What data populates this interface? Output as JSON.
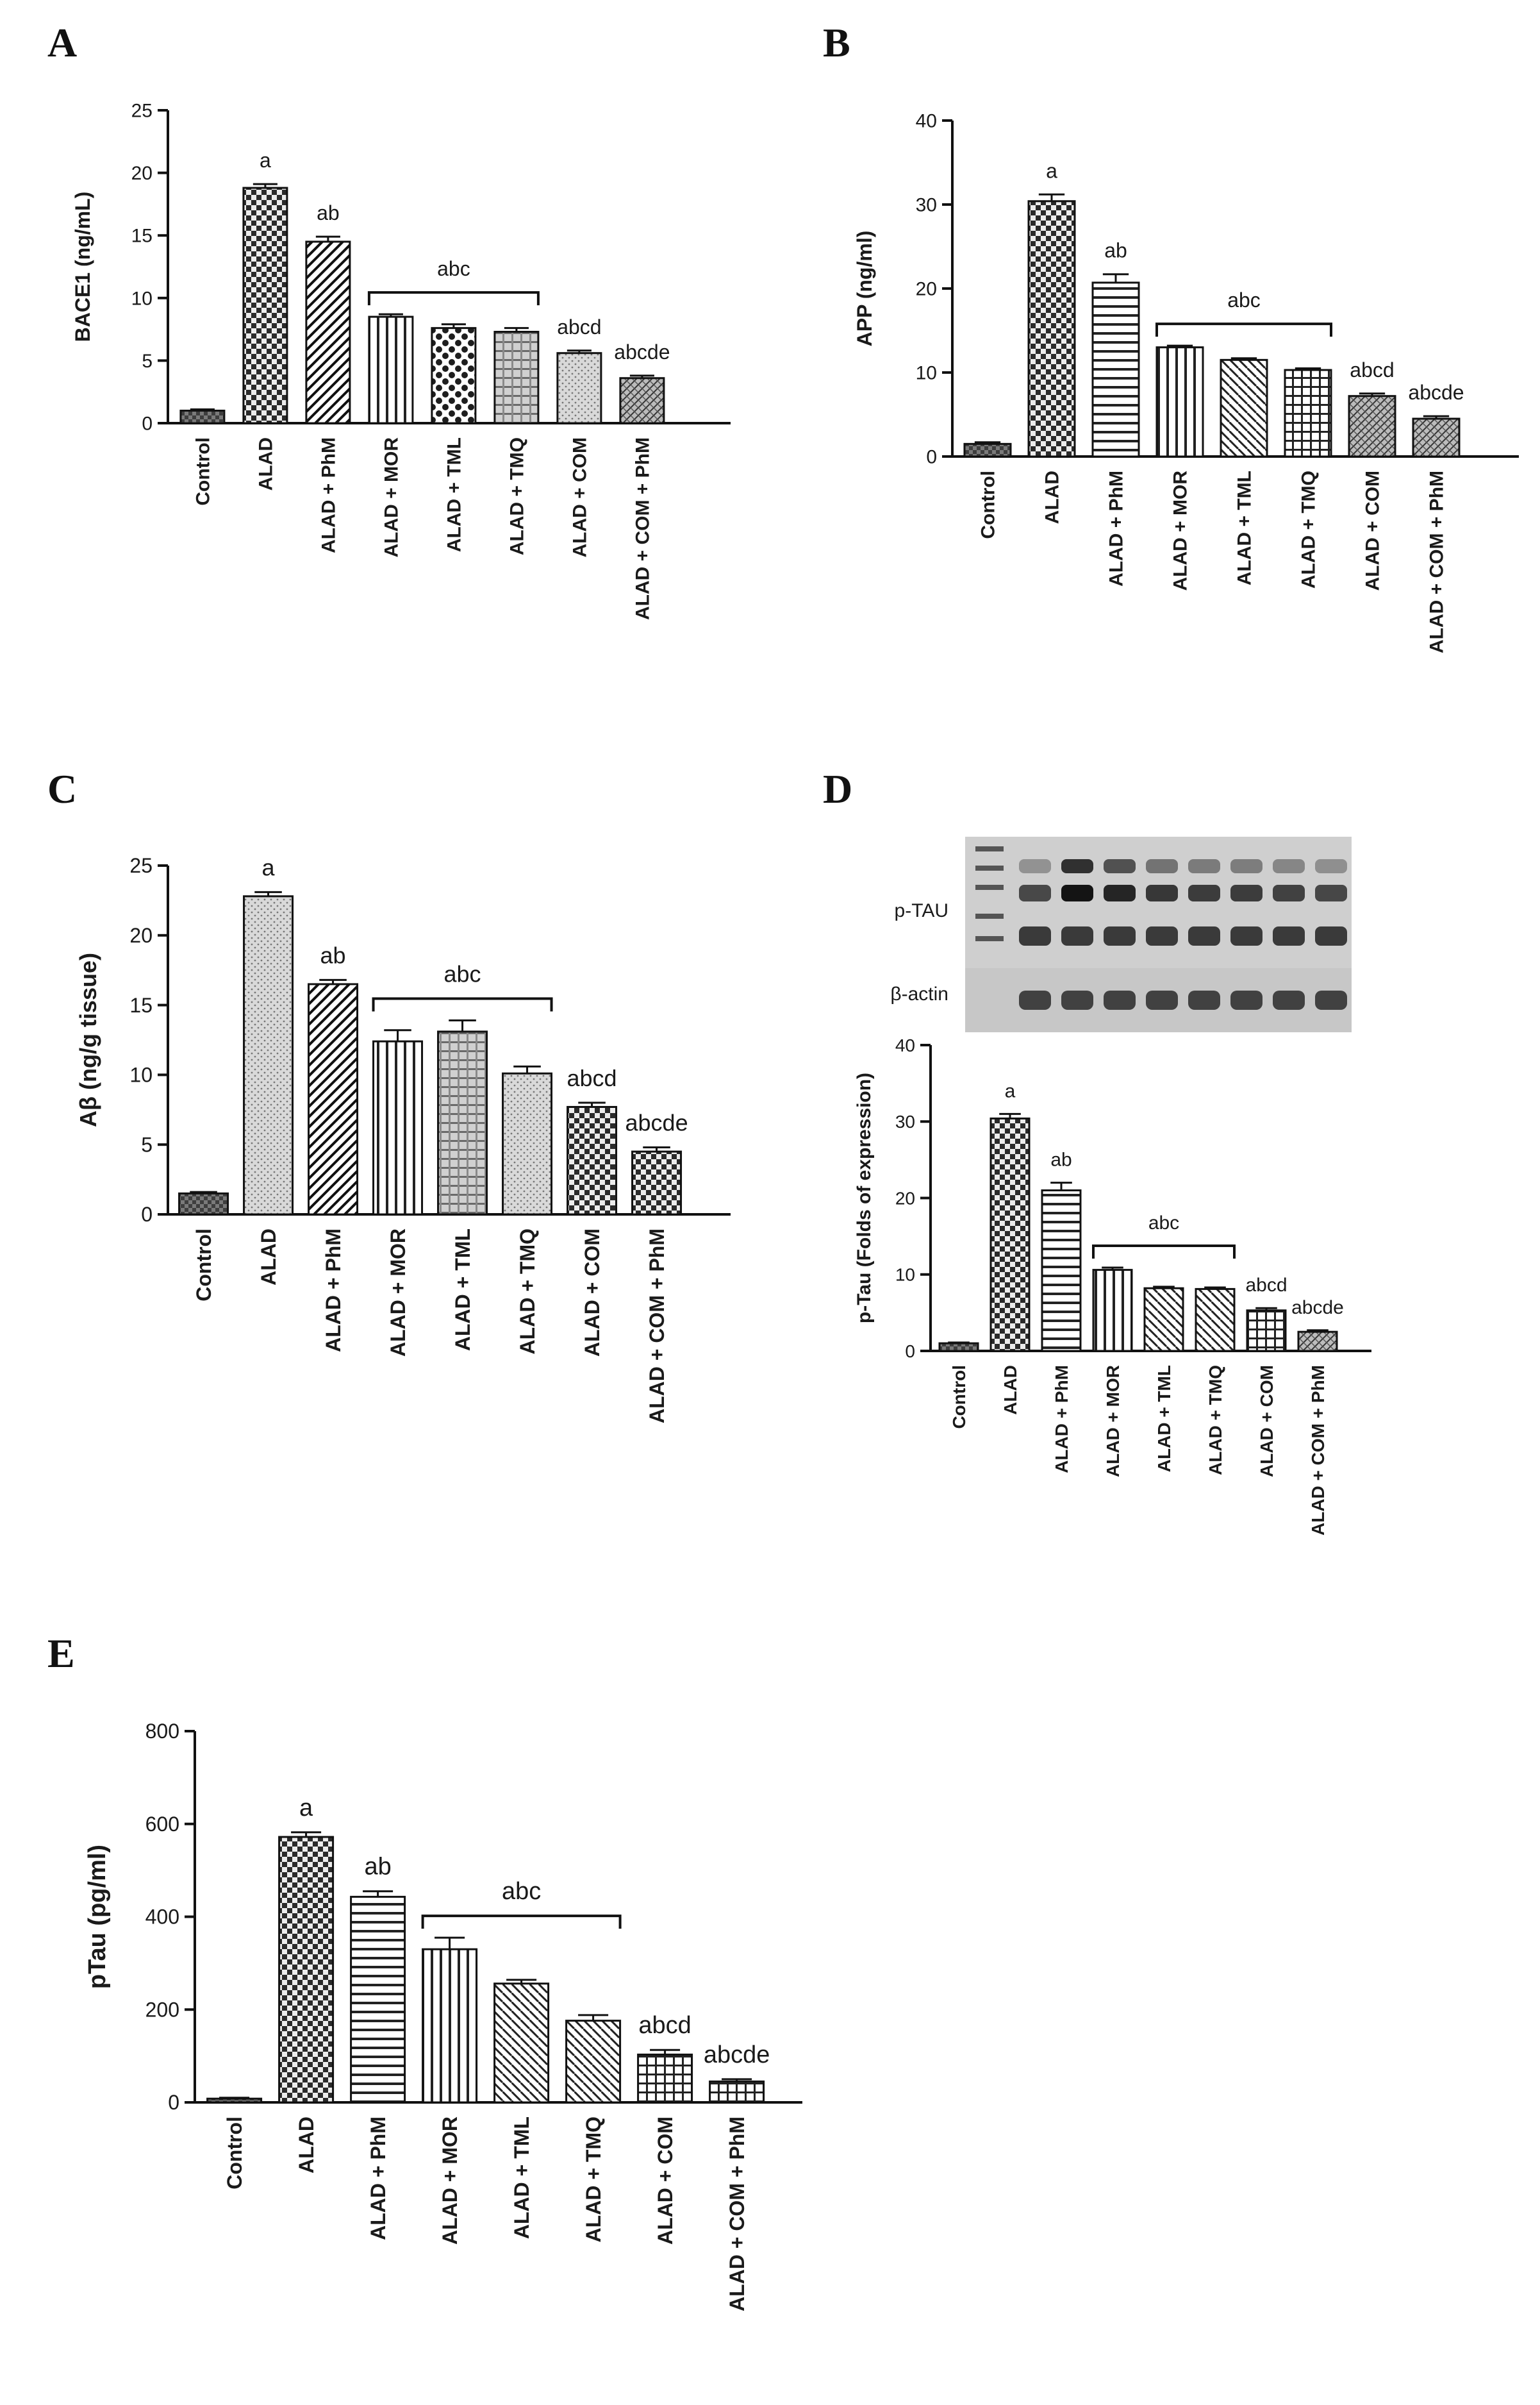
{
  "figure": {
    "panels": [
      "A",
      "B",
      "C",
      "D",
      "E"
    ],
    "western_blot": {
      "labels": [
        "p-TAU",
        "β-actin"
      ]
    }
  },
  "chart_data": [
    {
      "panel": "A",
      "type": "bar",
      "ylabel": "BACE1 (ng/mL)",
      "ylim": [
        0,
        25
      ],
      "yticks": [
        0,
        5,
        10,
        15,
        20,
        25
      ],
      "categories": [
        "Control",
        "ALAD",
        "ALAD + PhM",
        "ALAD + MOR",
        "ALAD + TML",
        "ALAD + TMQ",
        "ALAD + COM",
        "ALAD + COM + PhM"
      ],
      "values": [
        1.0,
        18.8,
        14.5,
        8.5,
        7.6,
        7.3,
        5.6,
        3.6
      ],
      "errors": [
        0.1,
        0.3,
        0.4,
        0.2,
        0.3,
        0.3,
        0.2,
        0.2
      ],
      "annotations": [
        {
          "label": "a",
          "bar": 1
        },
        {
          "label": "ab",
          "bar": 2
        },
        {
          "label": "abc",
          "bracket": [
            3,
            5
          ]
        },
        {
          "label": "abcd",
          "bar": 6
        },
        {
          "label": "abcde",
          "bar": 7
        }
      ]
    },
    {
      "panel": "B",
      "type": "bar",
      "ylabel": "APP (ng/ml)",
      "ylim": [
        0,
        40
      ],
      "yticks": [
        0,
        10,
        20,
        30,
        40
      ],
      "categories": [
        "Control",
        "ALAD",
        "ALAD + PhM",
        "ALAD + MOR",
        "ALAD + TML",
        "ALAD + TMQ",
        "ALAD + COM",
        "ALAD + COM + PhM"
      ],
      "values": [
        1.5,
        30.4,
        20.7,
        13.0,
        11.5,
        10.3,
        7.2,
        4.5
      ],
      "errors": [
        0.2,
        0.8,
        1.0,
        0.2,
        0.2,
        0.2,
        0.3,
        0.3
      ],
      "annotations": [
        {
          "label": "a",
          "bar": 1
        },
        {
          "label": "ab",
          "bar": 2
        },
        {
          "label": "abc",
          "bracket": [
            3,
            5
          ]
        },
        {
          "label": "abcd",
          "bar": 6
        },
        {
          "label": "abcde",
          "bar": 7
        }
      ]
    },
    {
      "panel": "C",
      "type": "bar",
      "ylabel": "Aβ (ng/g tissue)",
      "ylim": [
        0,
        25
      ],
      "yticks": [
        0,
        5,
        10,
        15,
        20,
        25
      ],
      "categories": [
        "Control",
        "ALAD",
        "ALAD + PhM",
        "ALAD + MOR",
        "ALAD + TML",
        "ALAD + TMQ",
        "ALAD + COM",
        "ALAD + COM + PhM"
      ],
      "values": [
        1.5,
        22.8,
        16.5,
        12.4,
        13.1,
        10.1,
        7.7,
        4.5
      ],
      "errors": [
        0.1,
        0.3,
        0.3,
        0.8,
        0.8,
        0.5,
        0.3,
        0.3
      ],
      "annotations": [
        {
          "label": "a",
          "bar": 1
        },
        {
          "label": "ab",
          "bar": 2
        },
        {
          "label": "abc",
          "bracket": [
            3,
            5
          ]
        },
        {
          "label": "abcd",
          "bar": 6
        },
        {
          "label": "abcde",
          "bar": 7
        }
      ]
    },
    {
      "panel": "D",
      "type": "bar",
      "ylabel": "p-Tau (Folds of expression)",
      "ylim": [
        0,
        40
      ],
      "yticks": [
        0,
        10,
        20,
        30,
        40
      ],
      "categories": [
        "Control",
        "ALAD",
        "ALAD + PhM",
        "ALAD + MOR",
        "ALAD + TML",
        "ALAD + TMQ",
        "ALAD + COM",
        "ALAD + COM + PhM"
      ],
      "values": [
        1.0,
        30.4,
        21.0,
        10.6,
        8.2,
        8.1,
        5.3,
        2.5
      ],
      "errors": [
        0.1,
        0.6,
        1.0,
        0.3,
        0.2,
        0.2,
        0.3,
        0.2
      ],
      "annotations": [
        {
          "label": "a",
          "bar": 1
        },
        {
          "label": "ab",
          "bar": 2
        },
        {
          "label": "abc",
          "bracket": [
            3,
            5
          ]
        },
        {
          "label": "abcd",
          "bar": 6
        },
        {
          "label": "abcde",
          "bar": 7
        }
      ]
    },
    {
      "panel": "E",
      "type": "bar",
      "ylabel": "pTau (pg/ml)",
      "ylim": [
        0,
        800
      ],
      "yticks": [
        0,
        200,
        400,
        600,
        800
      ],
      "categories": [
        "Control",
        "ALAD",
        "ALAD + PhM",
        "ALAD + MOR",
        "ALAD + TML",
        "ALAD + TMQ",
        "ALAD + COM",
        "ALAD + COM + PhM"
      ],
      "values": [
        8,
        572,
        443,
        330,
        256,
        176,
        103,
        45
      ],
      "errors": [
        2,
        10,
        12,
        25,
        8,
        12,
        10,
        5
      ],
      "annotations": [
        {
          "label": "a",
          "bar": 1
        },
        {
          "label": "ab",
          "bar": 2
        },
        {
          "label": "abc",
          "bracket": [
            3,
            5
          ]
        },
        {
          "label": "abcd",
          "bar": 6
        },
        {
          "label": "abcde",
          "bar": 7
        }
      ]
    }
  ]
}
